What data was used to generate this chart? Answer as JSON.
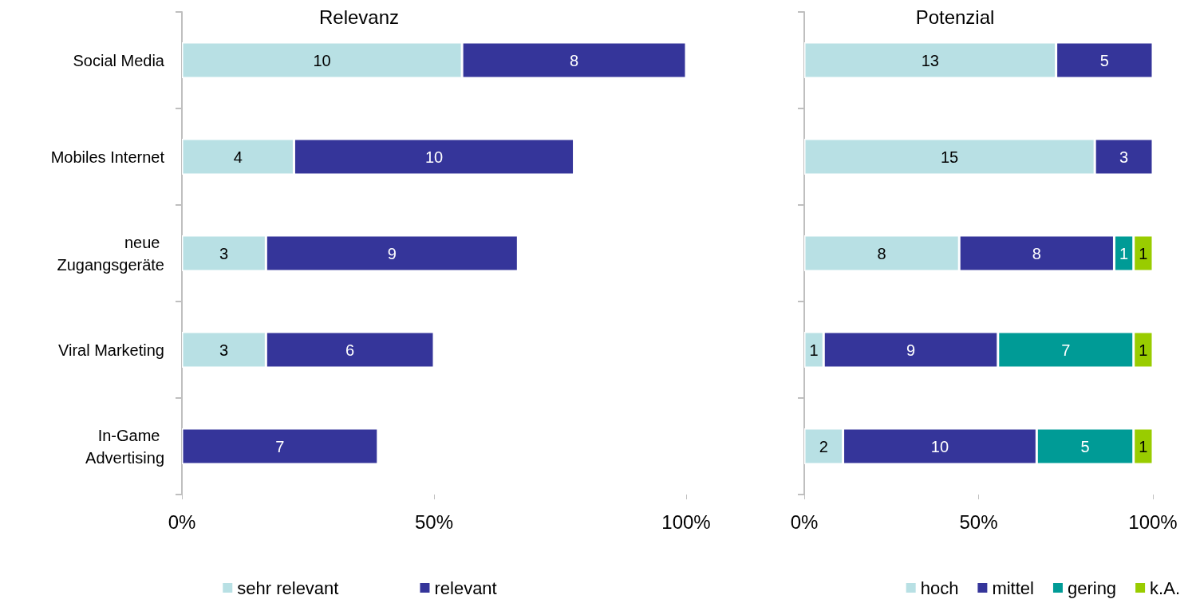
{
  "chart_data": [
    {
      "type": "bar",
      "title": "Relevanz",
      "orientation": "horizontal",
      "stacked": true,
      "data_labels": true,
      "legend": "bottom",
      "categories": [
        "Social Media",
        "Mobiles Internet",
        "neue Zugangsgeräte",
        "Viral Marketing",
        "In-Game Advertising"
      ],
      "xlim": [
        0,
        18
      ],
      "x2lim": [
        0,
        100
      ],
      "x2ticks": [
        {
          "value": 0,
          "label": "0%"
        },
        {
          "value": 50,
          "label": "50%"
        },
        {
          "value": 100,
          "label": "100%"
        }
      ],
      "series": [
        {
          "name": "sehr relevant",
          "color": "#b8e0e4",
          "values": [
            10,
            4,
            3,
            3,
            null
          ]
        },
        {
          "name": "relevant",
          "color": "#35359a",
          "values": [
            8,
            10,
            9,
            6,
            7
          ]
        }
      ]
    },
    {
      "type": "bar",
      "title": "Potenzial",
      "orientation": "horizontal",
      "stacked": true,
      "data_labels": true,
      "legend": "bottom right",
      "tick_labels": "x",
      "categories": [
        "Social Media",
        "Mobiles Internet",
        "neue Zugangsgeräte",
        "Viral Marketing",
        "In-Game Advertising"
      ],
      "xlim": [
        0,
        18
      ],
      "x2lim": [
        0,
        100
      ],
      "x2ticks": [
        {
          "value": 0,
          "label": "0%"
        },
        {
          "value": 50,
          "label": "50%"
        },
        {
          "value": 100,
          "label": "100%"
        }
      ],
      "series": [
        {
          "name": "hoch",
          "color": "#b8e0e4",
          "values": [
            13,
            15,
            8,
            1,
            2
          ]
        },
        {
          "name": "mittel",
          "color": "#35359a",
          "values": [
            5,
            3,
            8,
            9,
            10
          ]
        },
        {
          "name": "gering",
          "color": "#009b96",
          "values": [
            null,
            null,
            1,
            7,
            5
          ]
        },
        {
          "name": "k.A.",
          "color": "#99cc00",
          "values": [
            null,
            null,
            1,
            1,
            1
          ]
        }
      ]
    }
  ]
}
